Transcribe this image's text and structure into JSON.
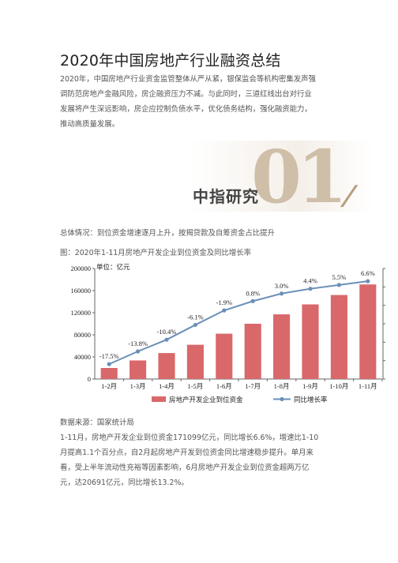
{
  "article": {
    "title": "2020年中国房地产行业融资总结",
    "intro_lines": [
      "2020年，中国房地产行业资金监管整体从严从紧，银保监会等机构密集发声强",
      "调防范房地产金融风险，房企融资压力不减。与此同时，三道红线出台对行业",
      "发展将产生深远影响，房企应控制负债水平，优化债务结构，强化融资能力，",
      "推动高质量发展。"
    ],
    "banner_text": "中指研究",
    "banner_number": "01",
    "overview": "总体情况：到位资金增速逐月上升，按揭贷款及自筹资金占比提升",
    "figure_caption": "图：2020年1-11月房地产开发企业到位资金及同比增长率",
    "source": "数据来源：国家统计局",
    "analysis_lines": [
      "1-11月，房地产开发企业到位资金171099亿元，同比增长6.6%，增速比1-10",
      "月提高1.1个百分点，自2月起房地产开发到位资金同比增速稳步提升。单月来",
      "看，受上半年流动性充裕等因素影响，6月房地产开发企业到位资金超两万亿",
      "元，达20691亿元，同比增长13.2%。"
    ]
  },
  "chart_data": {
    "type": "bar",
    "unit_label": "单位：亿元",
    "categories": [
      "1-2月",
      "1-3月",
      "1-4月",
      "1-5月",
      "1-6月",
      "1-7月",
      "1-8月",
      "1-9月",
      "1-10月",
      "1-11月"
    ],
    "series": [
      {
        "name": "房地产开发企业到位资金",
        "type": "bar",
        "color": "#d9686b",
        "values": [
          20000,
          33600,
          47000,
          62000,
          82000,
          100000,
          117000,
          135000,
          152000,
          171099
        ]
      },
      {
        "name": "同比增长率",
        "type": "line",
        "color": "#6b8fb8",
        "values": [
          -17.5,
          -13.8,
          -10.4,
          -6.1,
          -1.9,
          0.8,
          3.0,
          4.4,
          5.5,
          6.6
        ],
        "labels": [
          "-17.5%",
          "-13.8%",
          "-10.4%",
          "-6.1%",
          "-1.9%",
          "0.8%",
          "3.0%",
          "4.4%",
          "5.5%",
          "6.6%"
        ]
      }
    ],
    "y_ticks": [
      "0",
      "40000",
      "80000",
      "120000",
      "160000",
      "200000"
    ],
    "ylim": [
      0,
      200000
    ],
    "y2lim": [
      -20,
      8
    ],
    "grid": false,
    "legend": "bottom"
  }
}
